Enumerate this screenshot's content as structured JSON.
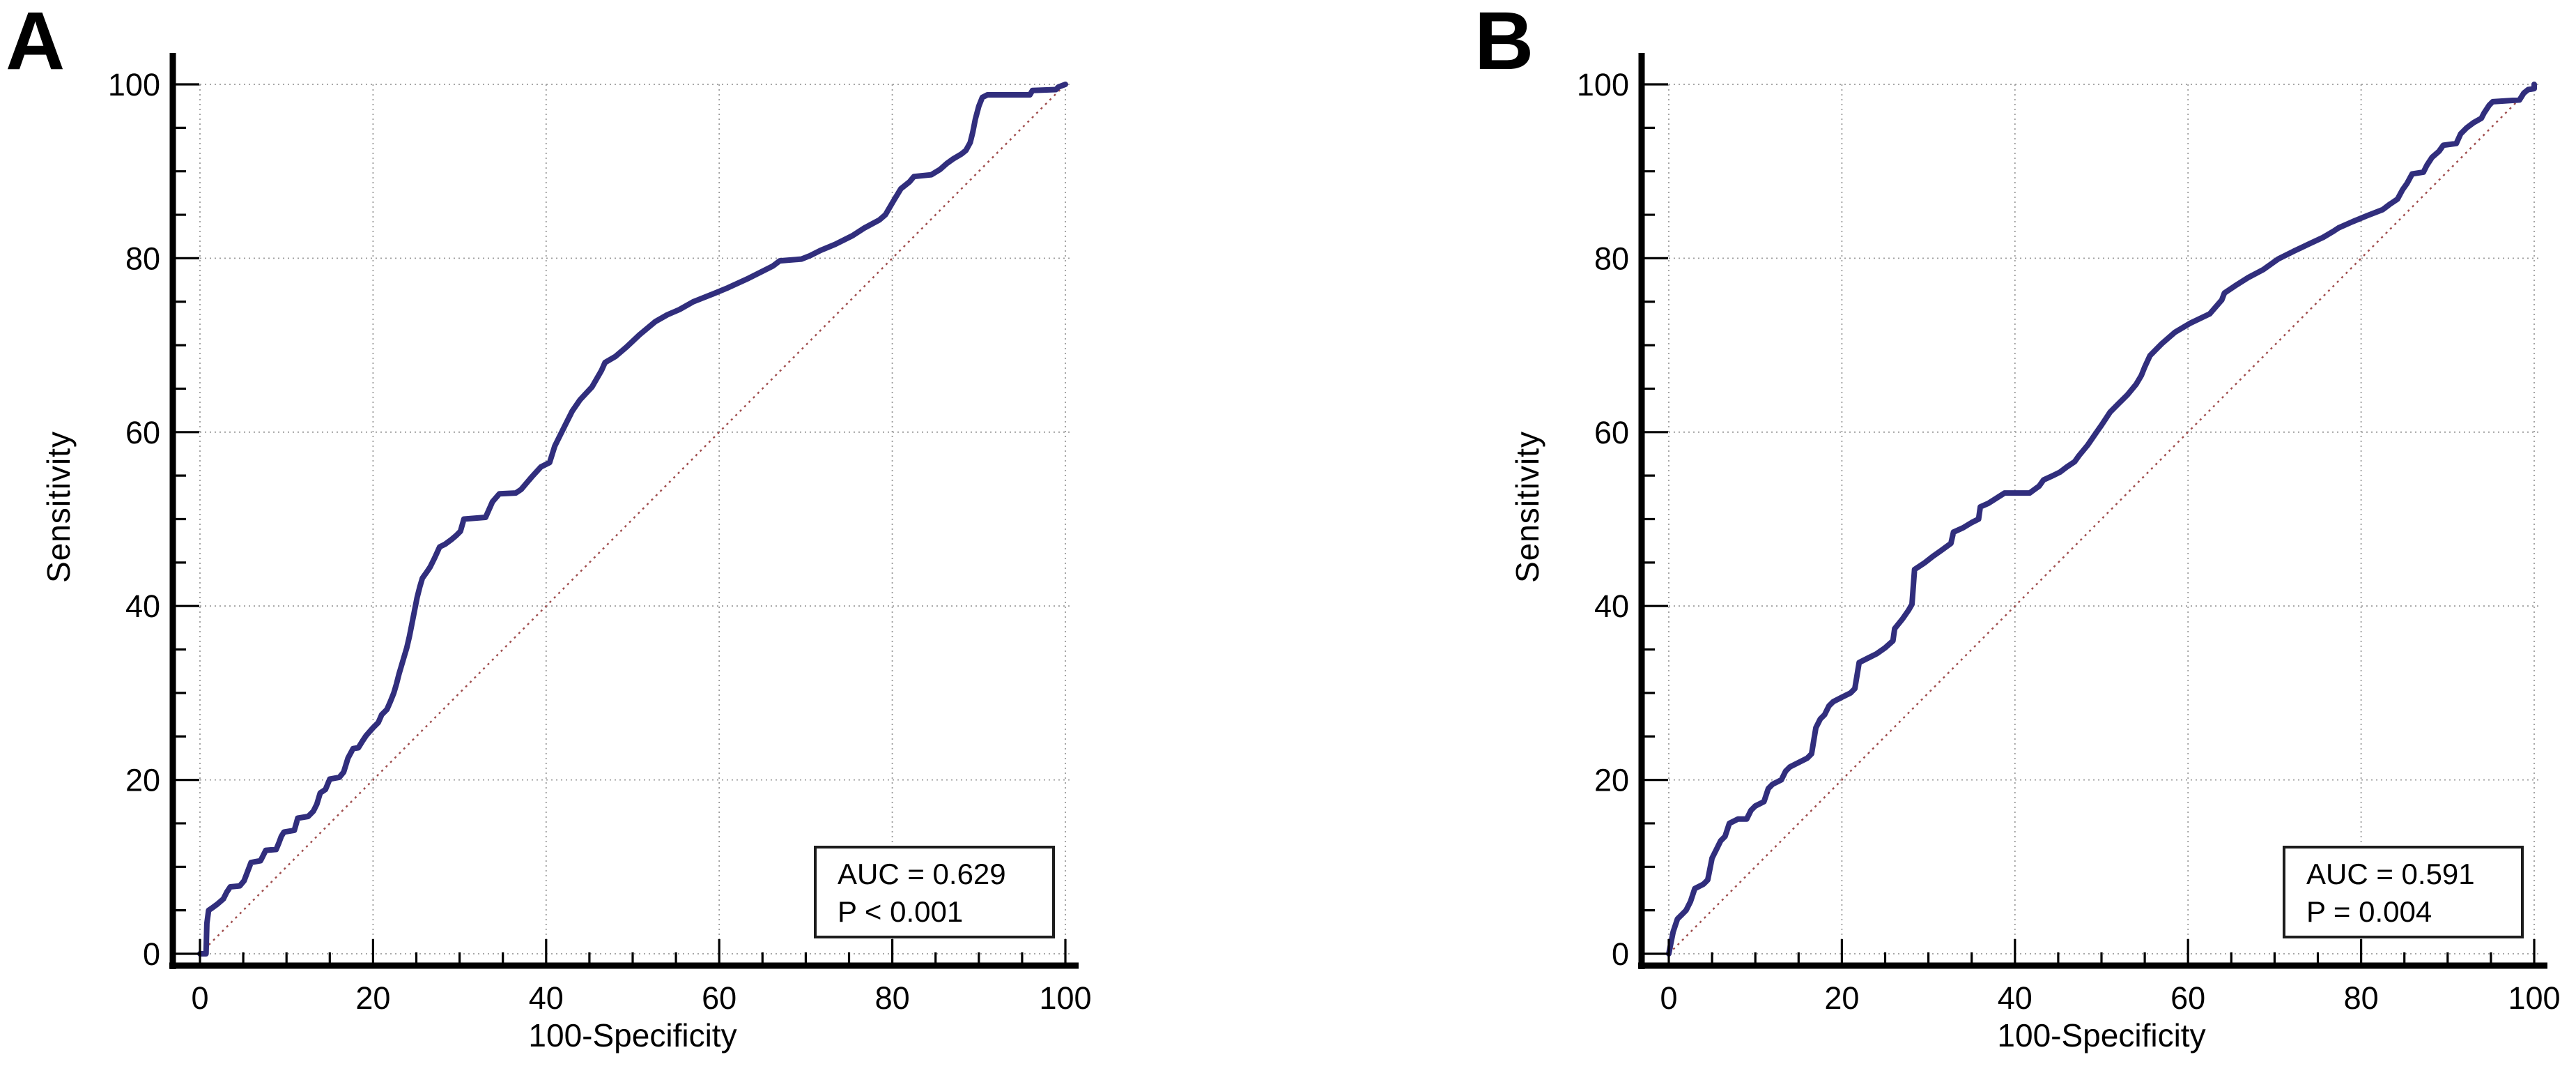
{
  "figure": {
    "background": "#ffffff"
  },
  "chart_data": [
    {
      "type": "line",
      "chart_kind": "roc-curve",
      "panel_label": "A",
      "title": "",
      "xlabel": "100-Specificity",
      "ylabel": "Sensitivity",
      "xlim": [
        0,
        100
      ],
      "ylim": [
        0,
        100
      ],
      "x_major_ticks": [
        0,
        20,
        40,
        60,
        80,
        100
      ],
      "y_major_ticks": [
        0,
        20,
        40,
        60,
        80,
        100
      ],
      "minor_tick_step": 5,
      "grid": "dotted",
      "legend": "none",
      "curve_color": "#312e7d",
      "reference_color": "#a04d4d",
      "annotation": {
        "line1": "AUC = 0.629",
        "line2": "P < 0.001",
        "auc": 0.629,
        "p_value": "< 0.001"
      },
      "series": [
        {
          "name": "ROC curve",
          "points": [
            [
              0,
              0
            ],
            [
              0.7,
              0
            ],
            [
              0.8,
              3.5
            ],
            [
              1,
              5
            ],
            [
              1.3,
              5.2
            ],
            [
              2,
              5.7
            ],
            [
              2.7,
              6.3
            ],
            [
              3.1,
              7.1
            ],
            [
              3.5,
              7.7
            ],
            [
              4.6,
              7.8
            ],
            [
              5.1,
              8.4
            ],
            [
              5.4,
              9.2
            ],
            [
              5.9,
              10.5
            ],
            [
              7,
              10.7
            ],
            [
              7.3,
              11.3
            ],
            [
              7.6,
              11.9
            ],
            [
              8.8,
              12
            ],
            [
              9.1,
              12.7
            ],
            [
              9.4,
              13.5
            ],
            [
              9.7,
              14
            ],
            [
              10.9,
              14.2
            ],
            [
              11.1,
              14.9
            ],
            [
              11.3,
              15.6
            ],
            [
              12.5,
              15.8
            ],
            [
              13.1,
              16.4
            ],
            [
              13.5,
              17.2
            ],
            [
              13.9,
              18.5
            ],
            [
              14.5,
              18.9
            ],
            [
              15,
              20.1
            ],
            [
              16.1,
              20.3
            ],
            [
              16.6,
              20.9
            ],
            [
              17.1,
              22.5
            ],
            [
              17.7,
              23.6
            ],
            [
              18.3,
              23.7
            ],
            [
              18.8,
              24.5
            ],
            [
              19.2,
              25.1
            ],
            [
              20,
              26
            ],
            [
              20.6,
              26.6
            ],
            [
              21,
              27.5
            ],
            [
              21.6,
              28.1
            ],
            [
              22,
              29
            ],
            [
              22.4,
              30
            ],
            [
              22.7,
              31
            ],
            [
              23,
              32.2
            ],
            [
              23.3,
              33.2
            ],
            [
              23.6,
              34.2
            ],
            [
              23.9,
              35.2
            ],
            [
              24.2,
              36.5
            ],
            [
              24.5,
              38
            ],
            [
              24.8,
              39.5
            ],
            [
              25.1,
              41
            ],
            [
              25.4,
              42.2
            ],
            [
              25.7,
              43.2
            ],
            [
              26.2,
              43.9
            ],
            [
              26.6,
              44.5
            ],
            [
              27.1,
              45.5
            ],
            [
              27.7,
              46.8
            ],
            [
              28.3,
              47.1
            ],
            [
              29,
              47.6
            ],
            [
              29.6,
              48.1
            ],
            [
              30.1,
              48.6
            ],
            [
              30.5,
              50
            ],
            [
              33,
              50.2
            ],
            [
              33.8,
              52
            ],
            [
              34.6,
              52.9
            ],
            [
              36.5,
              53
            ],
            [
              37.1,
              53.4
            ],
            [
              38.3,
              54.8
            ],
            [
              39.4,
              56
            ],
            [
              40.4,
              56.5
            ],
            [
              41,
              58.4
            ],
            [
              42.2,
              60.8
            ],
            [
              43,
              62.4
            ],
            [
              43.9,
              63.7
            ],
            [
              45.3,
              65.2
            ],
            [
              46.4,
              67.1
            ],
            [
              46.8,
              68
            ],
            [
              48,
              68.7
            ],
            [
              49.3,
              69.8
            ],
            [
              50.8,
              71.2
            ],
            [
              52.6,
              72.7
            ],
            [
              54,
              73.5
            ],
            [
              55.4,
              74.1
            ],
            [
              57,
              75
            ],
            [
              59.3,
              75.9
            ],
            [
              61,
              76.6
            ],
            [
              63.4,
              77.7
            ],
            [
              65,
              78.5
            ],
            [
              66.2,
              79.1
            ],
            [
              67,
              79.7
            ],
            [
              69.5,
              79.9
            ],
            [
              70.5,
              80.3
            ],
            [
              71.7,
              80.9
            ],
            [
              73.4,
              81.6
            ],
            [
              75.4,
              82.6
            ],
            [
              76.8,
              83.5
            ],
            [
              78.5,
              84.4
            ],
            [
              79.2,
              85
            ],
            [
              80.2,
              86.7
            ],
            [
              81,
              88
            ],
            [
              82,
              88.8
            ],
            [
              82.5,
              89.4
            ],
            [
              84.5,
              89.6
            ],
            [
              85.5,
              90.2
            ],
            [
              86.3,
              90.9
            ],
            [
              87,
              91.4
            ],
            [
              88,
              92
            ],
            [
              88.5,
              92.4
            ],
            [
              89,
              93.3
            ],
            [
              89.3,
              94.5
            ],
            [
              89.6,
              96
            ],
            [
              90,
              97.5
            ],
            [
              90.4,
              98.5
            ],
            [
              91,
              98.8
            ],
            [
              95.9,
              98.8
            ],
            [
              96.2,
              99.3
            ],
            [
              98.9,
              99.4
            ],
            [
              99.2,
              99.7
            ],
            [
              100,
              100
            ]
          ]
        },
        {
          "name": "Chance diagonal",
          "points": [
            [
              0,
              0
            ],
            [
              100,
              100
            ]
          ]
        }
      ]
    },
    {
      "type": "line",
      "chart_kind": "roc-curve",
      "panel_label": "B",
      "title": "",
      "xlabel": "100-Specificity",
      "ylabel": "Sensitivity",
      "xlim": [
        0,
        100
      ],
      "ylim": [
        0,
        100
      ],
      "x_major_ticks": [
        0,
        20,
        40,
        60,
        80,
        100
      ],
      "y_major_ticks": [
        0,
        20,
        40,
        60,
        80,
        100
      ],
      "minor_tick_step": 5,
      "grid": "dotted",
      "legend": "none",
      "curve_color": "#312e7d",
      "reference_color": "#a04d4d",
      "annotation": {
        "line1": "AUC = 0.591",
        "line2": "P = 0.004",
        "auc": 0.591,
        "p_value": "0.004"
      },
      "series": [
        {
          "name": "ROC curve",
          "points": [
            [
              0,
              0
            ],
            [
              0.5,
              2.5
            ],
            [
              1,
              4
            ],
            [
              1.5,
              4.5
            ],
            [
              2,
              5
            ],
            [
              2.5,
              6
            ],
            [
              3,
              7.5
            ],
            [
              4,
              8
            ],
            [
              4.5,
              8.5
            ],
            [
              5,
              11
            ],
            [
              5.5,
              12
            ],
            [
              6,
              13
            ],
            [
              6.5,
              13.5
            ],
            [
              7,
              15
            ],
            [
              8,
              15.5
            ],
            [
              9,
              15.5
            ],
            [
              9.5,
              16.5
            ],
            [
              10,
              17
            ],
            [
              11,
              17.5
            ],
            [
              11.5,
              19
            ],
            [
              12,
              19.5
            ],
            [
              13,
              20
            ],
            [
              13.5,
              21
            ],
            [
              14,
              21.5
            ],
            [
              15,
              22
            ],
            [
              16,
              22.5
            ],
            [
              16.5,
              23
            ],
            [
              17,
              26
            ],
            [
              17.5,
              27
            ],
            [
              18,
              27.5
            ],
            [
              18.5,
              28.5
            ],
            [
              19,
              29
            ],
            [
              20,
              29.5
            ],
            [
              21,
              30
            ],
            [
              21.5,
              30.5
            ],
            [
              22,
              33.5
            ],
            [
              23,
              34
            ],
            [
              24,
              34.5
            ],
            [
              25,
              35.2
            ],
            [
              25.9,
              36
            ],
            [
              26.1,
              37.4
            ],
            [
              27,
              38.5
            ],
            [
              27.7,
              39.5
            ],
            [
              28.1,
              40.2
            ],
            [
              28.4,
              44.2
            ],
            [
              29.6,
              45
            ],
            [
              30.5,
              45.7
            ],
            [
              31.5,
              46.4
            ],
            [
              32.6,
              47.2
            ],
            [
              32.9,
              48.5
            ],
            [
              34,
              49
            ],
            [
              35,
              49.6
            ],
            [
              35.8,
              50
            ],
            [
              36,
              51.4
            ],
            [
              36.9,
              51.8
            ],
            [
              38.8,
              53
            ],
            [
              41.7,
              53
            ],
            [
              42.8,
              53.8
            ],
            [
              43.3,
              54.5
            ],
            [
              44.4,
              55
            ],
            [
              45.2,
              55.4
            ],
            [
              46,
              56
            ],
            [
              46.9,
              56.6
            ],
            [
              47.4,
              57.3
            ],
            [
              48.4,
              58.5
            ],
            [
              49.5,
              60.1
            ],
            [
              50,
              60.8
            ],
            [
              51,
              62.3
            ],
            [
              52,
              63.3
            ],
            [
              53,
              64.3
            ],
            [
              54,
              65.5
            ],
            [
              54.6,
              66.5
            ],
            [
              55,
              67.5
            ],
            [
              55.6,
              68.8
            ],
            [
              56.2,
              69.4
            ],
            [
              57,
              70.2
            ],
            [
              58.5,
              71.5
            ],
            [
              60.2,
              72.5
            ],
            [
              62.5,
              73.6
            ],
            [
              63.9,
              75.2
            ],
            [
              64.2,
              76
            ],
            [
              65.4,
              76.8
            ],
            [
              67,
              77.8
            ],
            [
              68.7,
              78.7
            ],
            [
              70.4,
              79.9
            ],
            [
              72.2,
              80.8
            ],
            [
              73.9,
              81.6
            ],
            [
              75.6,
              82.4
            ],
            [
              76.8,
              83.1
            ],
            [
              77.4,
              83.5
            ],
            [
              79,
              84.2
            ],
            [
              80.7,
              84.9
            ],
            [
              82.5,
              85.6
            ],
            [
              83.3,
              86.2
            ],
            [
              84.2,
              86.8
            ],
            [
              84.8,
              87.9
            ],
            [
              85.3,
              88.6
            ],
            [
              85.9,
              89.7
            ],
            [
              87.2,
              89.9
            ],
            [
              87.6,
              90.7
            ],
            [
              88.2,
              91.6
            ],
            [
              89,
              92.3
            ],
            [
              89.5,
              93
            ],
            [
              91,
              93.2
            ],
            [
              91.5,
              94.3
            ],
            [
              92.2,
              95
            ],
            [
              93,
              95.6
            ],
            [
              93.9,
              96.1
            ],
            [
              94.2,
              96.7
            ],
            [
              94.8,
              97.6
            ],
            [
              95.2,
              98
            ],
            [
              98.3,
              98.2
            ],
            [
              98.8,
              99
            ],
            [
              99.3,
              99.4
            ],
            [
              100,
              99.5
            ],
            [
              100,
              100
            ]
          ]
        },
        {
          "name": "Chance diagonal",
          "points": [
            [
              0,
              0
            ],
            [
              100,
              100
            ]
          ]
        }
      ]
    }
  ]
}
